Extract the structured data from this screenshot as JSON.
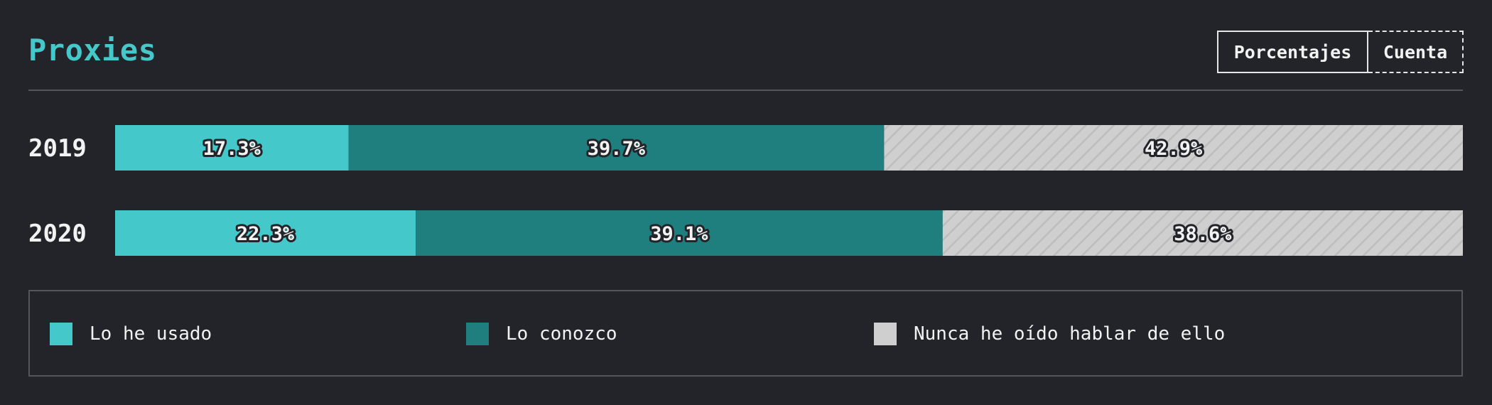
{
  "title": "Proxies",
  "toggle": {
    "percent_label": "Porcentajes",
    "count_label": "Cuenta"
  },
  "chart_data": {
    "type": "bar",
    "orientation": "horizontal",
    "stacked": true,
    "categories": [
      "2019",
      "2020"
    ],
    "series": [
      {
        "name": "Lo he usado",
        "values": [
          17.3,
          22.3
        ],
        "color": "#45c8c9",
        "pattern": "solid"
      },
      {
        "name": "Lo conozco",
        "values": [
          39.7,
          39.1
        ],
        "color": "#1f7f7e",
        "pattern": "solid"
      },
      {
        "name": "Nunca he oído hablar de ello",
        "values": [
          42.9,
          38.6
        ],
        "color": "#cfcfcf",
        "pattern": "diagonal-hatch"
      }
    ],
    "value_suffix": "%",
    "legend_position": "bottom",
    "grid": false
  },
  "colors": {
    "background": "#232429",
    "title": "#45c8c9",
    "divider": "#55565c",
    "label_text": "#f2f2f2"
  }
}
